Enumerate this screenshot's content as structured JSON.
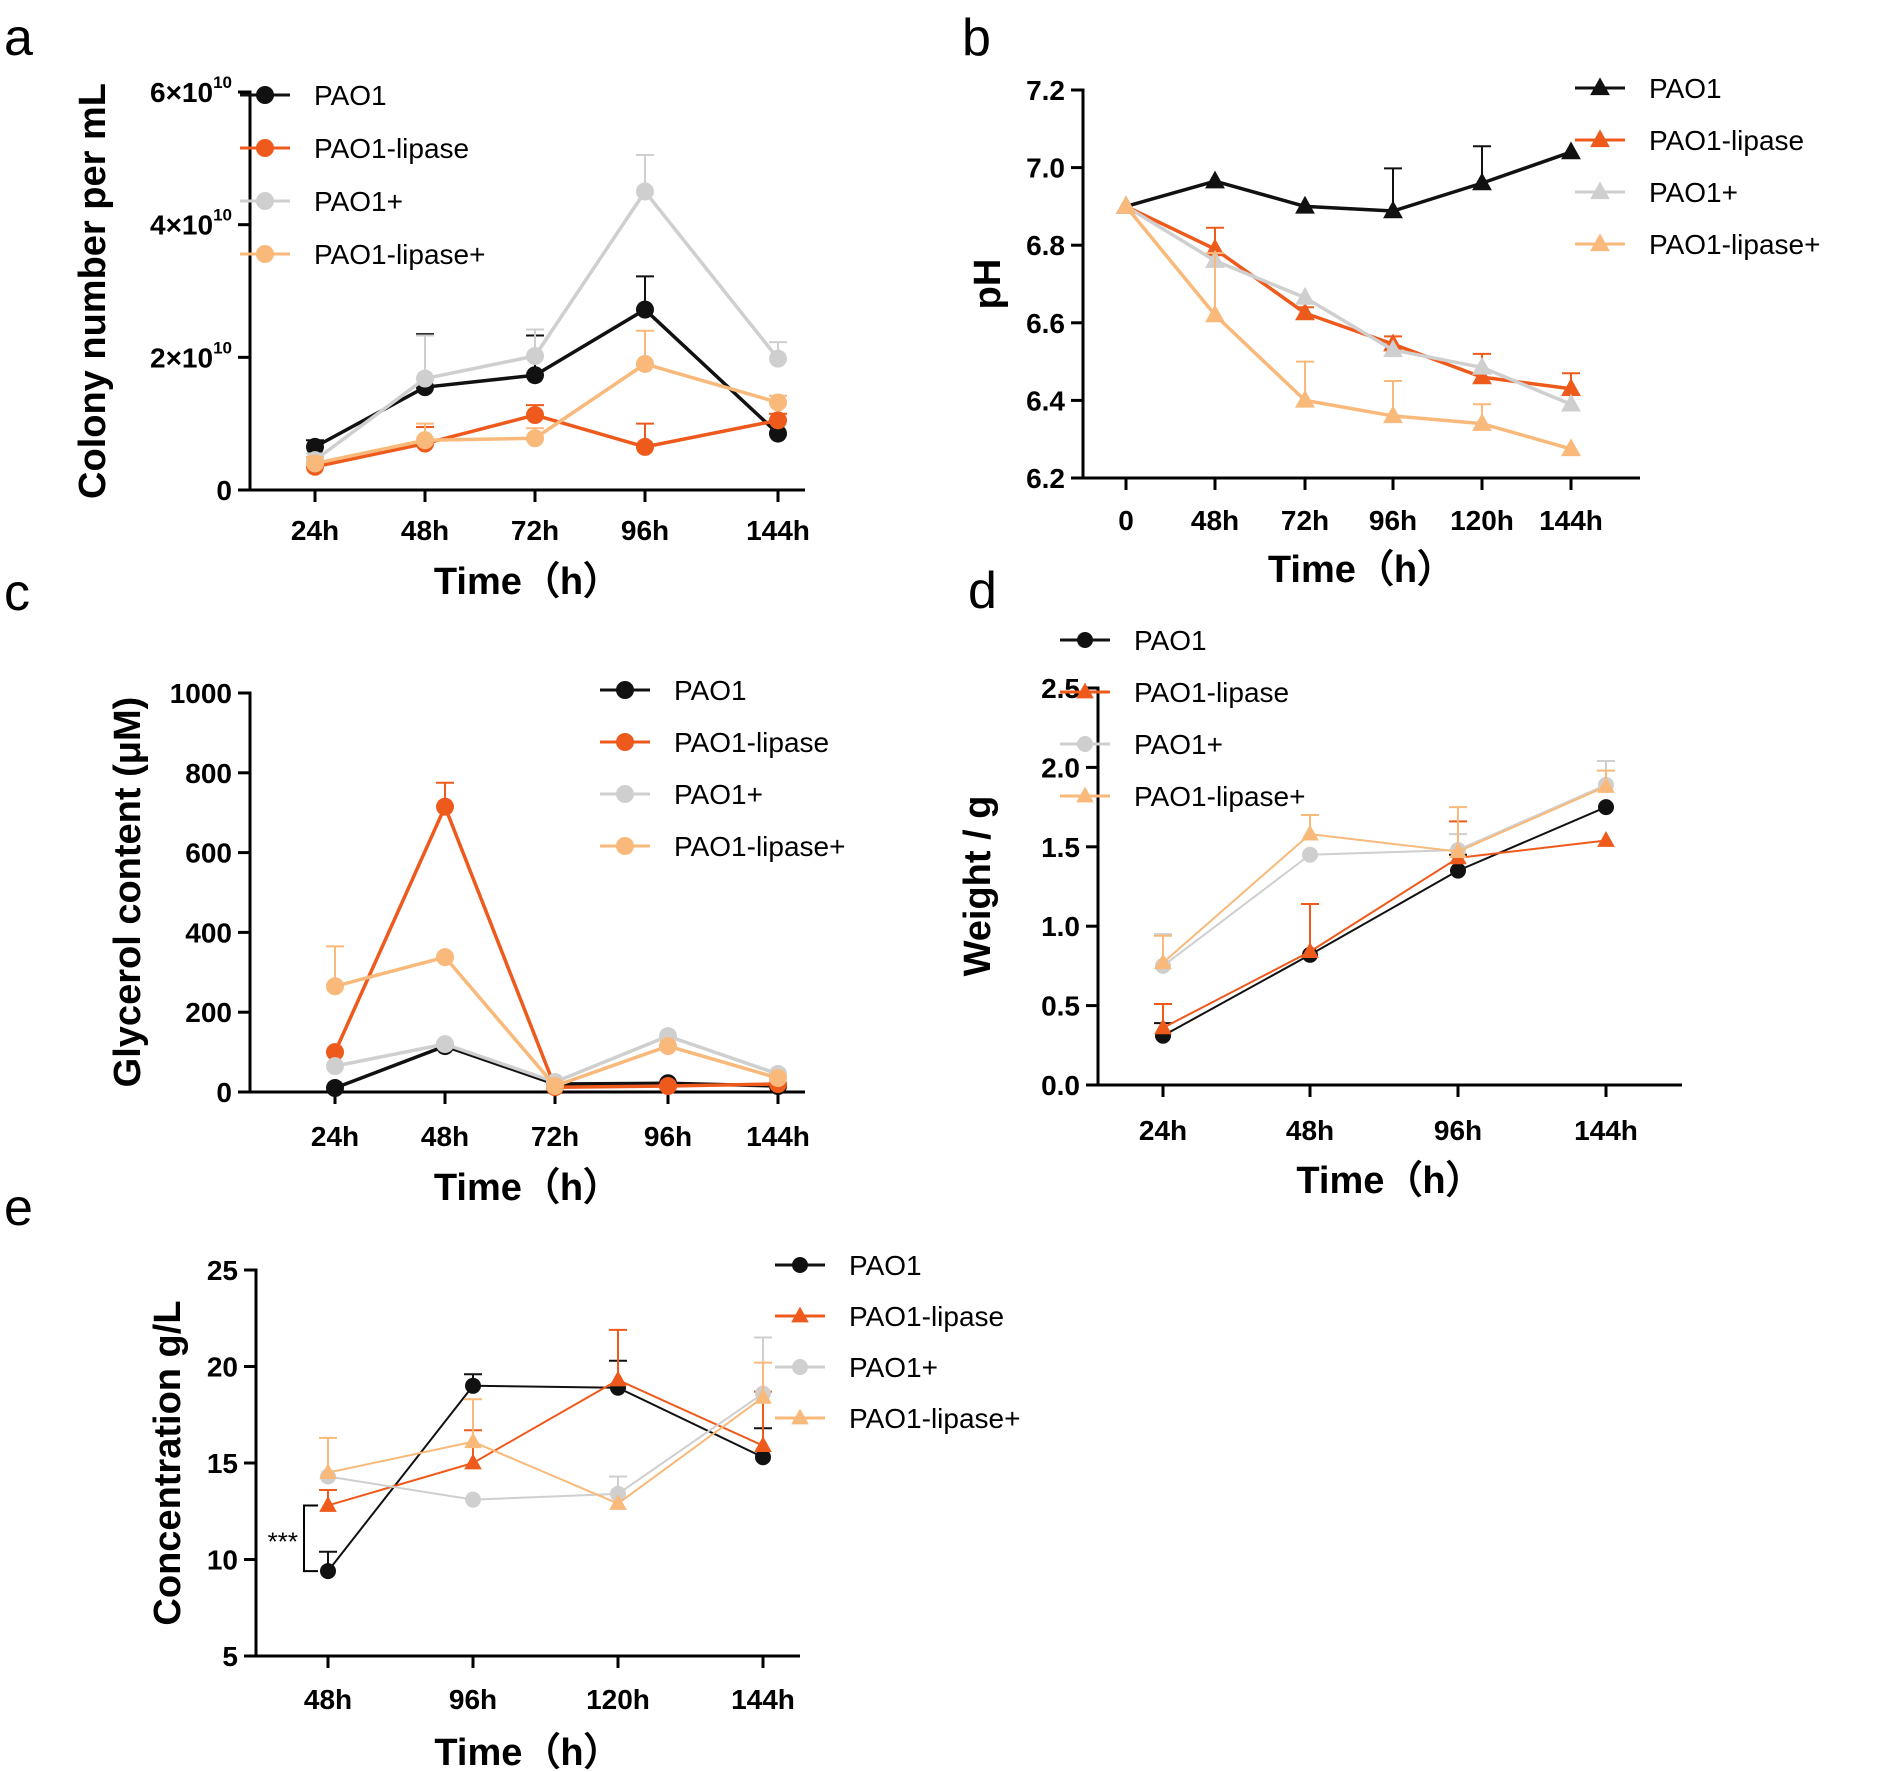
{
  "colors": {
    "PAO1": "#111111",
    "PAO1-lipase": "#ee5a1c",
    "PAO1+": "#cfcfcf",
    "PAO1-lipase+": "#f8b97a"
  },
  "chart_data": [
    {
      "panel": "a",
      "type": "line",
      "marker": "circle",
      "categories": [
        "24h",
        "48h",
        "72h",
        "96h",
        "144h"
      ],
      "ylabel": "Colony number per mL",
      "xlabel": "Time（h）",
      "ylim": [
        0,
        60000000000
      ],
      "yticks": [
        {
          "value": 0,
          "label": "0"
        },
        {
          "value": 20000000000,
          "label": "2×10",
          "sup": "10"
        },
        {
          "value": 40000000000,
          "label": "4×10",
          "sup": "10"
        },
        {
          "value": 60000000000,
          "label": "6×10",
          "sup": "10"
        }
      ],
      "series": [
        {
          "name": "PAO1",
          "marker": "circle",
          "values": [
            6500000000.0,
            15500000000.0,
            17300000000.0,
            27200000000.0,
            8500000000.0
          ],
          "errors": [
            1000000000.0,
            8000000000.0,
            6000000000.0,
            5000000000.0,
            2000000000.0
          ]
        },
        {
          "name": "PAO1-lipase",
          "marker": "circle",
          "values": [
            3500000000.0,
            7000000000.0,
            11300000000.0,
            6500000000.0,
            10500000000.0
          ],
          "errors": [
            2000000000.0,
            2500000000.0,
            1500000000.0,
            3500000000.0,
            1000000000.0
          ]
        },
        {
          "name": "PAO1+",
          "marker": "circle",
          "values": [
            4500000000.0,
            16800000000.0,
            20200000000.0,
            45000000000.0,
            19800000000.0
          ],
          "errors": [
            1000000000.0,
            6500000000.0,
            4000000000.0,
            5500000000.0,
            2500000000.0
          ]
        },
        {
          "name": "PAO1-lipase+",
          "marker": "circle",
          "values": [
            4000000000.0,
            7500000000.0,
            7800000000.0,
            19000000000.0,
            13200000000.0
          ],
          "errors": [
            1000000000.0,
            2500000000.0,
            1500000000.0,
            5000000000.0,
            1000000000.0
          ]
        }
      ]
    },
    {
      "panel": "b",
      "type": "line",
      "marker": "triangle",
      "categories": [
        "0",
        "48h",
        "72h",
        "96h",
        "120h",
        "144h"
      ],
      "ylabel": "pH",
      "xlabel": "Time（h）",
      "ylim": [
        6.2,
        7.2
      ],
      "yticks": [
        {
          "value": 6.2,
          "label": "6.2"
        },
        {
          "value": 6.4,
          "label": "6.4"
        },
        {
          "value": 6.6,
          "label": "6.6"
        },
        {
          "value": 6.8,
          "label": "6.8"
        },
        {
          "value": 7.0,
          "label": "7.0"
        },
        {
          "value": 7.2,
          "label": "7.2"
        }
      ],
      "series": [
        {
          "name": "PAO1",
          "marker": "triangle",
          "values": [
            6.9,
            6.965,
            6.9,
            6.888,
            6.96,
            7.04
          ],
          "errors": [
            0,
            0,
            0,
            0.11,
            0.095,
            0
          ]
        },
        {
          "name": "PAO1-lipase",
          "marker": "triangle",
          "values": [
            6.9,
            6.79,
            6.625,
            6.545,
            6.46,
            6.43
          ],
          "errors": [
            0,
            0.055,
            0.015,
            0.02,
            0.06,
            0.04
          ]
        },
        {
          "name": "PAO1+",
          "marker": "triangle",
          "values": [
            6.9,
            6.76,
            6.665,
            6.53,
            6.485,
            6.39
          ],
          "errors": [
            0,
            0,
            0,
            0,
            0,
            0
          ]
        },
        {
          "name": "PAO1-lipase+",
          "marker": "triangle",
          "values": [
            6.9,
            6.62,
            6.4,
            6.36,
            6.34,
            6.275
          ],
          "errors": [
            0,
            0.16,
            0.1,
            0.09,
            0.05,
            0
          ]
        }
      ]
    },
    {
      "panel": "c",
      "type": "line",
      "marker": "circle",
      "categories": [
        "24h",
        "48h",
        "72h",
        "96h",
        "144h"
      ],
      "ylabel": "Glycerol content (μM)",
      "xlabel": "Time（h）",
      "ylim": [
        0,
        1000
      ],
      "yticks": [
        {
          "value": 0,
          "label": "0"
        },
        {
          "value": 200,
          "label": "200"
        },
        {
          "value": 400,
          "label": "400"
        },
        {
          "value": 600,
          "label": "600"
        },
        {
          "value": 800,
          "label": "800"
        },
        {
          "value": 1000,
          "label": "1000"
        }
      ],
      "series": [
        {
          "name": "PAO1",
          "marker": "circle",
          "values": [
            10,
            115,
            20,
            22,
            15
          ],
          "errors": [
            0,
            0,
            0,
            0,
            0
          ]
        },
        {
          "name": "PAO1-lipase",
          "marker": "circle",
          "values": [
            100,
            715,
            12,
            15,
            20
          ],
          "errors": [
            0,
            60,
            0,
            0,
            0
          ]
        },
        {
          "name": "PAO1+",
          "marker": "circle",
          "values": [
            65,
            120,
            25,
            140,
            45
          ],
          "errors": [
            0,
            0,
            0,
            0,
            0
          ]
        },
        {
          "name": "PAO1-lipase+",
          "marker": "circle",
          "values": [
            265,
            338,
            15,
            115,
            35
          ],
          "errors": [
            100,
            0,
            0,
            0,
            0
          ]
        }
      ]
    },
    {
      "panel": "d",
      "type": "line",
      "marker": "mixed",
      "categories": [
        "24h",
        "48h",
        "96h",
        "144h"
      ],
      "ylabel": "Weight / g",
      "xlabel": "Time（h）",
      "ylim": [
        0,
        2.5
      ],
      "yticks": [
        {
          "value": 0,
          "label": "0.0"
        },
        {
          "value": 0.5,
          "label": "0.5"
        },
        {
          "value": 1.0,
          "label": "1.0"
        },
        {
          "value": 1.5,
          "label": "1.5"
        },
        {
          "value": 2.0,
          "label": "2.0"
        },
        {
          "value": 2.5,
          "label": "2.5"
        }
      ],
      "series": [
        {
          "name": "PAO1",
          "marker": "circle",
          "values": [
            0.31,
            0.82,
            1.35,
            1.75
          ],
          "errors": [
            0.08,
            0.32,
            0.1,
            0
          ]
        },
        {
          "name": "PAO1-lipase",
          "marker": "triangle",
          "values": [
            0.36,
            0.84,
            1.43,
            1.54
          ],
          "errors": [
            0.15,
            0.3,
            0.23,
            0
          ]
        },
        {
          "name": "PAO1+",
          "marker": "circle",
          "values": [
            0.75,
            1.45,
            1.48,
            1.89
          ],
          "errors": [
            0.2,
            0,
            0.1,
            0.15
          ]
        },
        {
          "name": "PAO1-lipase+",
          "marker": "triangle",
          "values": [
            0.77,
            1.58,
            1.47,
            1.88
          ],
          "errors": [
            0.17,
            0.12,
            0.28,
            0.1
          ]
        }
      ]
    },
    {
      "panel": "e",
      "type": "line",
      "marker": "mixed",
      "categories": [
        "48h",
        "96h",
        "120h",
        "144h"
      ],
      "ylabel": "Concentration g/L",
      "xlabel": "Time（h）",
      "ylim": [
        5,
        25
      ],
      "yticks": [
        {
          "value": 5,
          "label": "5"
        },
        {
          "value": 10,
          "label": "10"
        },
        {
          "value": 15,
          "label": "15"
        },
        {
          "value": 20,
          "label": "20"
        },
        {
          "value": 25,
          "label": "25"
        }
      ],
      "annotation": {
        "text": "***",
        "between": [
          "PAO1",
          "PAO1-lipase"
        ],
        "category": "48h"
      },
      "series": [
        {
          "name": "PAO1",
          "marker": "circle",
          "values": [
            9.4,
            19.0,
            18.9,
            15.3
          ],
          "errors": [
            1.0,
            0.6,
            1.4,
            1.5
          ]
        },
        {
          "name": "PAO1-lipase",
          "marker": "triangle",
          "values": [
            12.8,
            15.0,
            19.3,
            15.9
          ],
          "errors": [
            0.8,
            1.7,
            2.6,
            2.8
          ]
        },
        {
          "name": "PAO1+",
          "marker": "circle",
          "values": [
            14.3,
            13.1,
            13.4,
            18.6
          ],
          "errors": [
            0,
            0,
            0.9,
            2.9
          ]
        },
        {
          "name": "PAO1-lipase+",
          "marker": "triangle",
          "values": [
            14.5,
            16.1,
            12.9,
            18.4
          ],
          "errors": [
            1.8,
            2.2,
            0,
            1.8
          ]
        }
      ]
    }
  ]
}
